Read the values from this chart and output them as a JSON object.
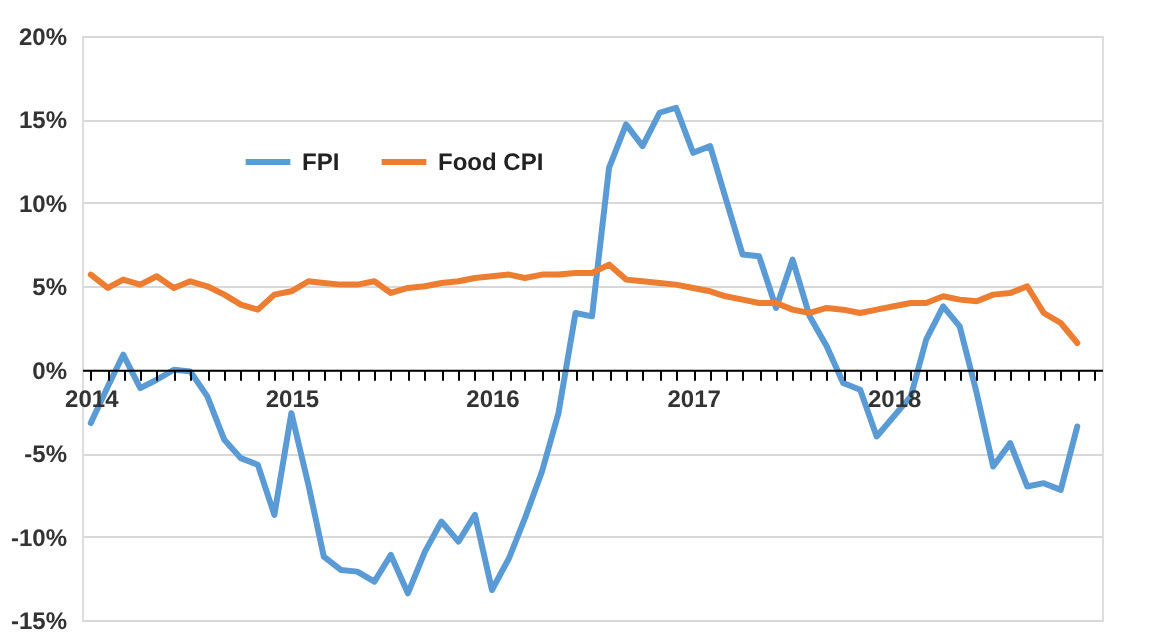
{
  "chart_data": {
    "type": "line",
    "x": [
      "2014-01",
      "2014-02",
      "2014-03",
      "2014-04",
      "2014-05",
      "2014-06",
      "2014-07",
      "2014-08",
      "2014-09",
      "2014-10",
      "2014-11",
      "2014-12",
      "2015-01",
      "2015-02",
      "2015-03",
      "2015-04",
      "2015-05",
      "2015-06",
      "2015-07",
      "2015-08",
      "2015-09",
      "2015-10",
      "2015-11",
      "2015-12",
      "2016-01",
      "2016-02",
      "2016-03",
      "2016-04",
      "2016-05",
      "2016-06",
      "2016-07",
      "2016-08",
      "2016-09",
      "2016-10",
      "2016-11",
      "2016-12",
      "2017-01",
      "2017-02",
      "2017-03",
      "2017-04",
      "2017-05",
      "2017-06",
      "2017-07",
      "2017-08",
      "2017-09",
      "2017-10",
      "2017-11",
      "2017-12",
      "2018-01",
      "2018-02",
      "2018-03",
      "2018-04",
      "2018-05",
      "2018-06",
      "2018-07",
      "2018-08",
      "2018-09",
      "2018-10",
      "2018-11",
      "2018-12"
    ],
    "series": [
      {
        "name": "FPI",
        "color": "#5b9bd5",
        "values": [
          -3.2,
          -1.0,
          0.9,
          -1.1,
          -0.6,
          0.0,
          -0.1,
          -1.6,
          -4.2,
          -5.3,
          -5.7,
          -8.7,
          -2.6,
          -6.9,
          -11.2,
          -12.0,
          -12.1,
          -12.7,
          -11.1,
          -13.4,
          -10.9,
          -9.1,
          -10.3,
          -8.7,
          -13.2,
          -11.3,
          -8.9,
          -6.1,
          -2.6,
          3.4,
          3.2,
          12.1,
          14.7,
          13.4,
          15.4,
          15.7,
          13.0,
          13.4,
          10.3,
          6.9,
          6.8,
          3.7,
          6.6,
          3.2,
          1.4,
          -0.8,
          -1.2,
          -4.0,
          -2.8,
          -1.6,
          1.8,
          3.8,
          2.6,
          -1.4,
          -5.8,
          -4.4,
          -7.0,
          -6.8,
          -7.2,
          -3.4
        ]
      },
      {
        "name": "Food CPI",
        "color": "#ed7d31",
        "values": [
          5.7,
          4.9,
          5.4,
          5.1,
          5.6,
          4.9,
          5.3,
          5.0,
          4.5,
          3.9,
          3.6,
          4.5,
          4.7,
          5.3,
          5.2,
          5.1,
          5.1,
          5.3,
          4.6,
          4.9,
          5.0,
          5.2,
          5.3,
          5.5,
          5.6,
          5.7,
          5.5,
          5.7,
          5.7,
          5.8,
          5.8,
          6.3,
          5.4,
          5.3,
          5.2,
          5.1,
          4.9,
          4.7,
          4.4,
          4.2,
          4.0,
          4.0,
          3.6,
          3.4,
          3.7,
          3.6,
          3.4,
          3.6,
          3.8,
          4.0,
          4.0,
          4.4,
          4.2,
          4.1,
          4.5,
          4.6,
          5.0,
          3.4,
          2.8,
          1.6
        ]
      }
    ],
    "xlim": [
      "2013-12-16",
      "2019-01-15"
    ],
    "xticks": [
      {
        "value": "2014-01",
        "label": "2014"
      },
      {
        "value": "2014-02",
        "label": null
      },
      {
        "value": "2014-03",
        "label": null
      },
      {
        "value": "2014-04",
        "label": null
      },
      {
        "value": "2014-05",
        "label": null
      },
      {
        "value": "2014-06",
        "label": null
      },
      {
        "value": "2014-07",
        "label": null
      },
      {
        "value": "2014-08",
        "label": null
      },
      {
        "value": "2014-09",
        "label": null
      },
      {
        "value": "2014-10",
        "label": null
      },
      {
        "value": "2014-11",
        "label": null
      },
      {
        "value": "2014-12",
        "label": null
      },
      {
        "value": "2015-01",
        "label": "2015"
      },
      {
        "value": "2015-02",
        "label": null
      },
      {
        "value": "2015-03",
        "label": null
      },
      {
        "value": "2015-04",
        "label": null
      },
      {
        "value": "2015-05",
        "label": null
      },
      {
        "value": "2015-06",
        "label": null
      },
      {
        "value": "2015-07",
        "label": null
      },
      {
        "value": "2015-08",
        "label": null
      },
      {
        "value": "2015-09",
        "label": null
      },
      {
        "value": "2015-10",
        "label": null
      },
      {
        "value": "2015-11",
        "label": null
      },
      {
        "value": "2015-12",
        "label": null
      },
      {
        "value": "2016-01",
        "label": "2016"
      },
      {
        "value": "2016-02",
        "label": null
      },
      {
        "value": "2016-03",
        "label": null
      },
      {
        "value": "2016-04",
        "label": null
      },
      {
        "value": "2016-05",
        "label": null
      },
      {
        "value": "2016-06",
        "label": null
      },
      {
        "value": "2016-07",
        "label": null
      },
      {
        "value": "2016-08",
        "label": null
      },
      {
        "value": "2016-09",
        "label": null
      },
      {
        "value": "2016-10",
        "label": null
      },
      {
        "value": "2016-11",
        "label": null
      },
      {
        "value": "2016-12",
        "label": null
      },
      {
        "value": "2017-01",
        "label": "2017"
      },
      {
        "value": "2017-02",
        "label": null
      },
      {
        "value": "2017-03",
        "label": null
      },
      {
        "value": "2017-04",
        "label": null
      },
      {
        "value": "2017-05",
        "label": null
      },
      {
        "value": "2017-06",
        "label": null
      },
      {
        "value": "2017-07",
        "label": null
      },
      {
        "value": "2017-08",
        "label": null
      },
      {
        "value": "2017-09",
        "label": null
      },
      {
        "value": "2017-10",
        "label": null
      },
      {
        "value": "2017-11",
        "label": null
      },
      {
        "value": "2017-12",
        "label": null
      },
      {
        "value": "2018-01",
        "label": "2018"
      },
      {
        "value": "2018-02",
        "label": null
      },
      {
        "value": "2018-03",
        "label": null
      },
      {
        "value": "2018-04",
        "label": null
      },
      {
        "value": "2018-05",
        "label": null
      },
      {
        "value": "2018-06",
        "label": null
      },
      {
        "value": "2018-07",
        "label": null
      },
      {
        "value": "2018-08",
        "label": null
      },
      {
        "value": "2018-09",
        "label": null
      },
      {
        "value": "2018-10",
        "label": null
      },
      {
        "value": "2018-11",
        "label": null
      },
      {
        "value": "2018-12",
        "label": null
      },
      {
        "value": "2019-01",
        "label": null
      }
    ],
    "ylim": [
      -15,
      20
    ],
    "yticks": [
      {
        "value": -15,
        "label": "-15%"
      },
      {
        "value": -10,
        "label": "-10%"
      },
      {
        "value": -5,
        "label": "-5%"
      },
      {
        "value": 0,
        "label": "0%"
      },
      {
        "value": 5,
        "label": "5%"
      },
      {
        "value": 10,
        "label": "10%"
      },
      {
        "value": 15,
        "label": "15%"
      },
      {
        "value": 20,
        "label": "20%"
      }
    ],
    "grid": "y",
    "legend": "top left",
    "marker": "none",
    "line_style": "solid"
  }
}
